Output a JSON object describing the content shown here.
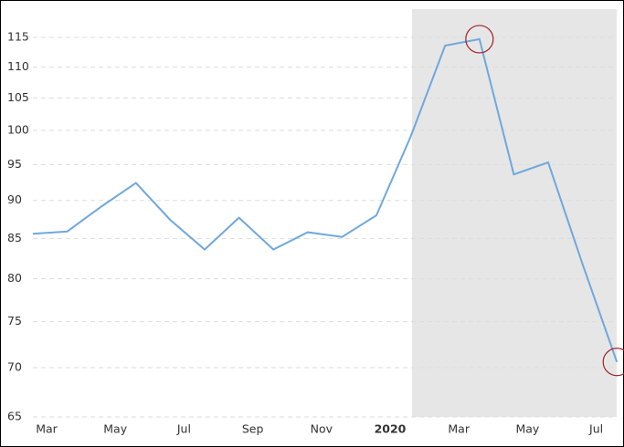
{
  "chart_data": {
    "type": "line",
    "categories": [
      "Mar",
      null,
      "May",
      null,
      "Jul",
      null,
      "Sep",
      null,
      "Nov",
      null,
      "2020",
      null,
      "Mar",
      null,
      "May",
      null,
      "Jul",
      null
    ],
    "series": [
      {
        "color": "#6fa8dc",
        "values": [
          85.6,
          85.9,
          89.2,
          92.4,
          87.4,
          83.6,
          87.7,
          83.6,
          85.8,
          85.2,
          88.0,
          99.1,
          113.6,
          114.7,
          93.6,
          95.3,
          81.8,
          70.6
        ]
      }
    ],
    "ylim": [
      65,
      120
    ],
    "yticks": [
      65,
      70,
      75,
      80,
      85,
      90,
      95,
      100,
      105,
      110,
      115
    ],
    "log_scale": true,
    "grid": true
  }
}
